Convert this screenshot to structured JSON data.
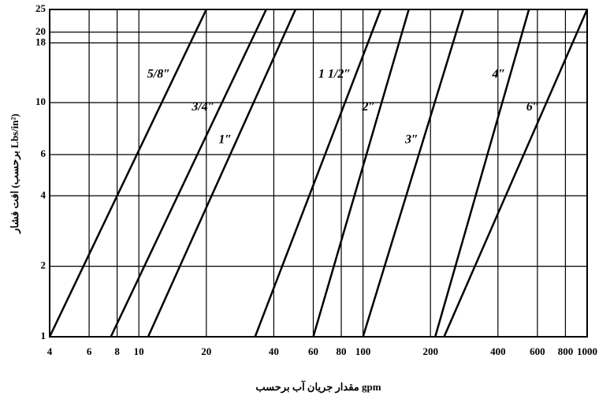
{
  "chart_data": {
    "type": "line",
    "xlabel": "مقدار جریان آب برحسب gpm",
    "ylabel": "افت فشار (برحسب Lbs/in²)",
    "xlog": true,
    "ylog": true,
    "grid": true,
    "color": "#000000",
    "xlim": [
      4,
      1000
    ],
    "ylim": [
      1,
      25
    ],
    "xticks": [
      4,
      6,
      8,
      10,
      20,
      40,
      60,
      80,
      100,
      200,
      400,
      600,
      800,
      1000
    ],
    "yticks": [
      1,
      2,
      4,
      6,
      10,
      18,
      20,
      25
    ],
    "series": [
      {
        "name": "5/8″",
        "x": [
          4,
          20
        ],
        "values": [
          1,
          25
        ]
      },
      {
        "name": "3/4″",
        "x": [
          7.5,
          37
        ],
        "values": [
          1,
          25
        ]
      },
      {
        "name": "1″",
        "x": [
          11,
          50
        ],
        "values": [
          1,
          25
        ]
      },
      {
        "name": "1 1/2″",
        "x": [
          33,
          120
        ],
        "values": [
          1,
          25
        ]
      },
      {
        "name": "2″",
        "x": [
          60,
          160
        ],
        "values": [
          1,
          25
        ]
      },
      {
        "name": "3″",
        "x": [
          100,
          280
        ],
        "values": [
          1,
          25
        ]
      },
      {
        "name": "4″",
        "x": [
          210,
          550
        ],
        "values": [
          1,
          25
        ]
      },
      {
        "name": "6″",
        "x": [
          230,
          1000
        ],
        "values": [
          1,
          25
        ]
      }
    ]
  }
}
